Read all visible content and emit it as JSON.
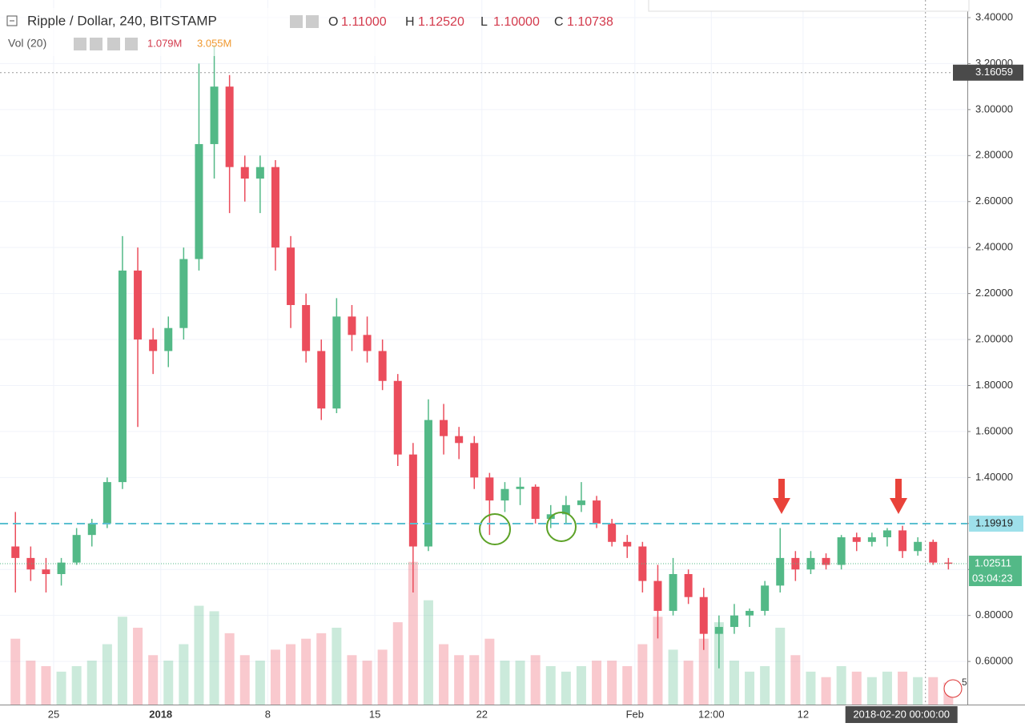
{
  "chart_data": {
    "type": "candlestick",
    "title": "Ripple / Dollar, 240, BITSTAMP",
    "ohlc": [
      {
        "key": "O",
        "value": "1.11000"
      },
      {
        "key": "H",
        "value": "1.12520"
      },
      {
        "key": "L",
        "value": "1.10000"
      },
      {
        "key": "C",
        "value": "1.10738"
      }
    ],
    "volume_title": "Vol (20)",
    "volume_labels": [
      "1.079M",
      "3.055M"
    ],
    "x": [
      "2017-12-22",
      "2017-12-23",
      "2017-12-24",
      "2017-12-25",
      "2017-12-26",
      "2017-12-27",
      "2017-12-28",
      "2017-12-29",
      "2017-12-30",
      "2017-12-31",
      "2018-01-01",
      "2018-01-02",
      "2018-01-03",
      "2018-01-04",
      "2018-01-05",
      "2018-01-06",
      "2018-01-07",
      "2018-01-08",
      "2018-01-09",
      "2018-01-10",
      "2018-01-11",
      "2018-01-12",
      "2018-01-13",
      "2018-01-14",
      "2018-01-15",
      "2018-01-16",
      "2018-01-17",
      "2018-01-18",
      "2018-01-19",
      "2018-01-20",
      "2018-01-21",
      "2018-01-22",
      "2018-01-23",
      "2018-01-24",
      "2018-01-25",
      "2018-01-26",
      "2018-01-27",
      "2018-01-28",
      "2018-01-29",
      "2018-01-30",
      "2018-01-31",
      "2018-02-01",
      "2018-02-02",
      "2018-02-03",
      "2018-02-04",
      "2018-02-05",
      "2018-02-06",
      "2018-02-07",
      "2018-02-08",
      "2018-02-09",
      "2018-02-10",
      "2018-02-11",
      "2018-02-12",
      "2018-02-13",
      "2018-02-14",
      "2018-02-15",
      "2018-02-16",
      "2018-02-17",
      "2018-02-18",
      "2018-02-19",
      "2018-02-20",
      "2018-02-21"
    ],
    "open": [
      1.1,
      1.05,
      1.0,
      0.98,
      1.03,
      1.15,
      1.2,
      1.38,
      2.3,
      2.0,
      1.95,
      2.05,
      2.35,
      2.85,
      3.1,
      2.75,
      2.7,
      2.75,
      2.4,
      2.15,
      1.95,
      1.7,
      2.1,
      2.02,
      1.95,
      1.82,
      1.5,
      1.1,
      1.65,
      1.58,
      1.55,
      1.4,
      1.3,
      1.35,
      1.36,
      1.22,
      1.24,
      1.28,
      1.3,
      1.2,
      1.12,
      1.1,
      0.95,
      0.82,
      0.98,
      0.88,
      0.72,
      0.75,
      0.8,
      0.82,
      0.93,
      1.05,
      1.0,
      1.05,
      1.02,
      1.14,
      1.12,
      1.14,
      1.17,
      1.08,
      1.12,
      1.03
    ],
    "high": [
      1.25,
      1.1,
      1.05,
      1.05,
      1.18,
      1.22,
      1.4,
      2.45,
      2.4,
      2.05,
      2.1,
      2.4,
      3.2,
      3.28,
      3.15,
      2.8,
      2.8,
      2.78,
      2.45,
      2.2,
      2.0,
      2.18,
      2.15,
      2.1,
      2.0,
      1.85,
      1.55,
      1.74,
      1.72,
      1.62,
      1.58,
      1.42,
      1.38,
      1.4,
      1.37,
      1.28,
      1.32,
      1.38,
      1.32,
      1.22,
      1.15,
      1.12,
      1.02,
      1.05,
      1.0,
      0.92,
      0.8,
      0.85,
      0.83,
      0.95,
      1.18,
      1.08,
      1.08,
      1.07,
      1.15,
      1.16,
      1.16,
      1.18,
      1.19,
      1.14,
      1.13,
      1.05
    ],
    "low": [
      0.9,
      0.95,
      0.9,
      0.93,
      1.02,
      1.1,
      1.18,
      1.35,
      1.62,
      1.85,
      1.88,
      2.0,
      2.3,
      2.7,
      2.55,
      2.6,
      2.55,
      2.3,
      2.05,
      1.9,
      1.65,
      1.68,
      1.95,
      1.9,
      1.78,
      1.45,
      0.9,
      1.08,
      1.5,
      1.48,
      1.35,
      1.15,
      1.25,
      1.28,
      1.2,
      1.18,
      1.2,
      1.25,
      1.18,
      1.1,
      1.05,
      0.9,
      0.7,
      0.8,
      0.85,
      0.65,
      0.57,
      0.72,
      0.75,
      0.8,
      0.9,
      0.95,
      0.98,
      1.0,
      1.0,
      1.08,
      1.1,
      1.1,
      1.05,
      1.06,
      1.02,
      1.0
    ],
    "close": [
      1.05,
      1.0,
      0.98,
      1.03,
      1.15,
      1.2,
      1.38,
      2.3,
      2.0,
      1.95,
      2.05,
      2.35,
      2.85,
      3.1,
      2.75,
      2.7,
      2.75,
      2.4,
      2.15,
      1.95,
      1.7,
      2.1,
      2.02,
      1.95,
      1.82,
      1.5,
      1.1,
      1.65,
      1.58,
      1.55,
      1.4,
      1.3,
      1.35,
      1.36,
      1.22,
      1.24,
      1.28,
      1.3,
      1.2,
      1.12,
      1.1,
      0.95,
      0.82,
      0.98,
      0.88,
      0.72,
      0.75,
      0.8,
      0.82,
      0.93,
      1.05,
      1.0,
      1.05,
      1.02,
      1.14,
      1.12,
      1.14,
      1.17,
      1.08,
      1.12,
      1.03,
      1.025
    ],
    "volume": [
      1.2,
      0.8,
      0.7,
      0.6,
      0.7,
      0.8,
      1.1,
      1.6,
      1.4,
      0.9,
      0.8,
      1.1,
      1.8,
      1.7,
      1.3,
      0.9,
      0.8,
      1.0,
      1.1,
      1.2,
      1.3,
      1.4,
      0.9,
      0.8,
      1.0,
      1.5,
      2.6,
      1.9,
      1.1,
      0.9,
      0.9,
      1.2,
      0.8,
      0.8,
      0.9,
      0.7,
      0.6,
      0.7,
      0.8,
      0.8,
      0.7,
      1.1,
      1.6,
      1.0,
      0.8,
      1.2,
      1.5,
      0.8,
      0.6,
      0.7,
      1.4,
      0.9,
      0.6,
      0.5,
      0.7,
      0.6,
      0.5,
      0.6,
      0.6,
      0.5,
      0.5,
      0.4
    ],
    "volume_ylim": [
      0,
      3.5
    ],
    "up_color": "#53b987",
    "down_color": "#eb4d5c",
    "ylim": [
      0.4124,
      3.4766
    ],
    "yticks": [
      {
        "value": 0.6,
        "label": "0.60000"
      },
      {
        "value": 0.8,
        "label": "0.80000"
      },
      {
        "value": 1.0,
        "label": "1.00000"
      },
      {
        "value": 1.2,
        "label": "1.20000"
      },
      {
        "value": 1.4,
        "label": "1.40000"
      },
      {
        "value": 1.6,
        "label": "1.60000"
      },
      {
        "value": 1.8,
        "label": "1.80000"
      },
      {
        "value": 2.0,
        "label": "2.00000"
      },
      {
        "value": 2.2,
        "label": "2.20000"
      },
      {
        "value": 2.4,
        "label": "2.40000"
      },
      {
        "value": 2.6,
        "label": "2.60000"
      },
      {
        "value": 2.8,
        "label": "2.80000"
      },
      {
        "value": 3.0,
        "label": "3.00000"
      },
      {
        "value": 3.2,
        "label": "3.20000"
      },
      {
        "value": 3.4,
        "label": "3.40000"
      }
    ],
    "xticks": [
      {
        "value": "2017-12-25",
        "label": "25"
      },
      {
        "value": "2018-01-01",
        "label": "2018"
      },
      {
        "value": "2018-01-08",
        "label": "8"
      },
      {
        "value": "2018-01-15",
        "label": "15"
      },
      {
        "value": "2018-01-22",
        "label": "22"
      },
      {
        "value": "2018-02-01",
        "label": "Feb"
      },
      {
        "value": "2018-02-06",
        "label": "12:00"
      },
      {
        "value": "2018-02-12",
        "label": "12"
      }
    ],
    "level_line": 1.19919,
    "crosshair_price": 3.16059,
    "last_price": 1.02511,
    "countdown": "03:04:23",
    "crosshair_date": {
      "value": "2018-02-20",
      "label": "2018-02-20 00:00:00"
    },
    "grid": true,
    "badge": "5"
  }
}
